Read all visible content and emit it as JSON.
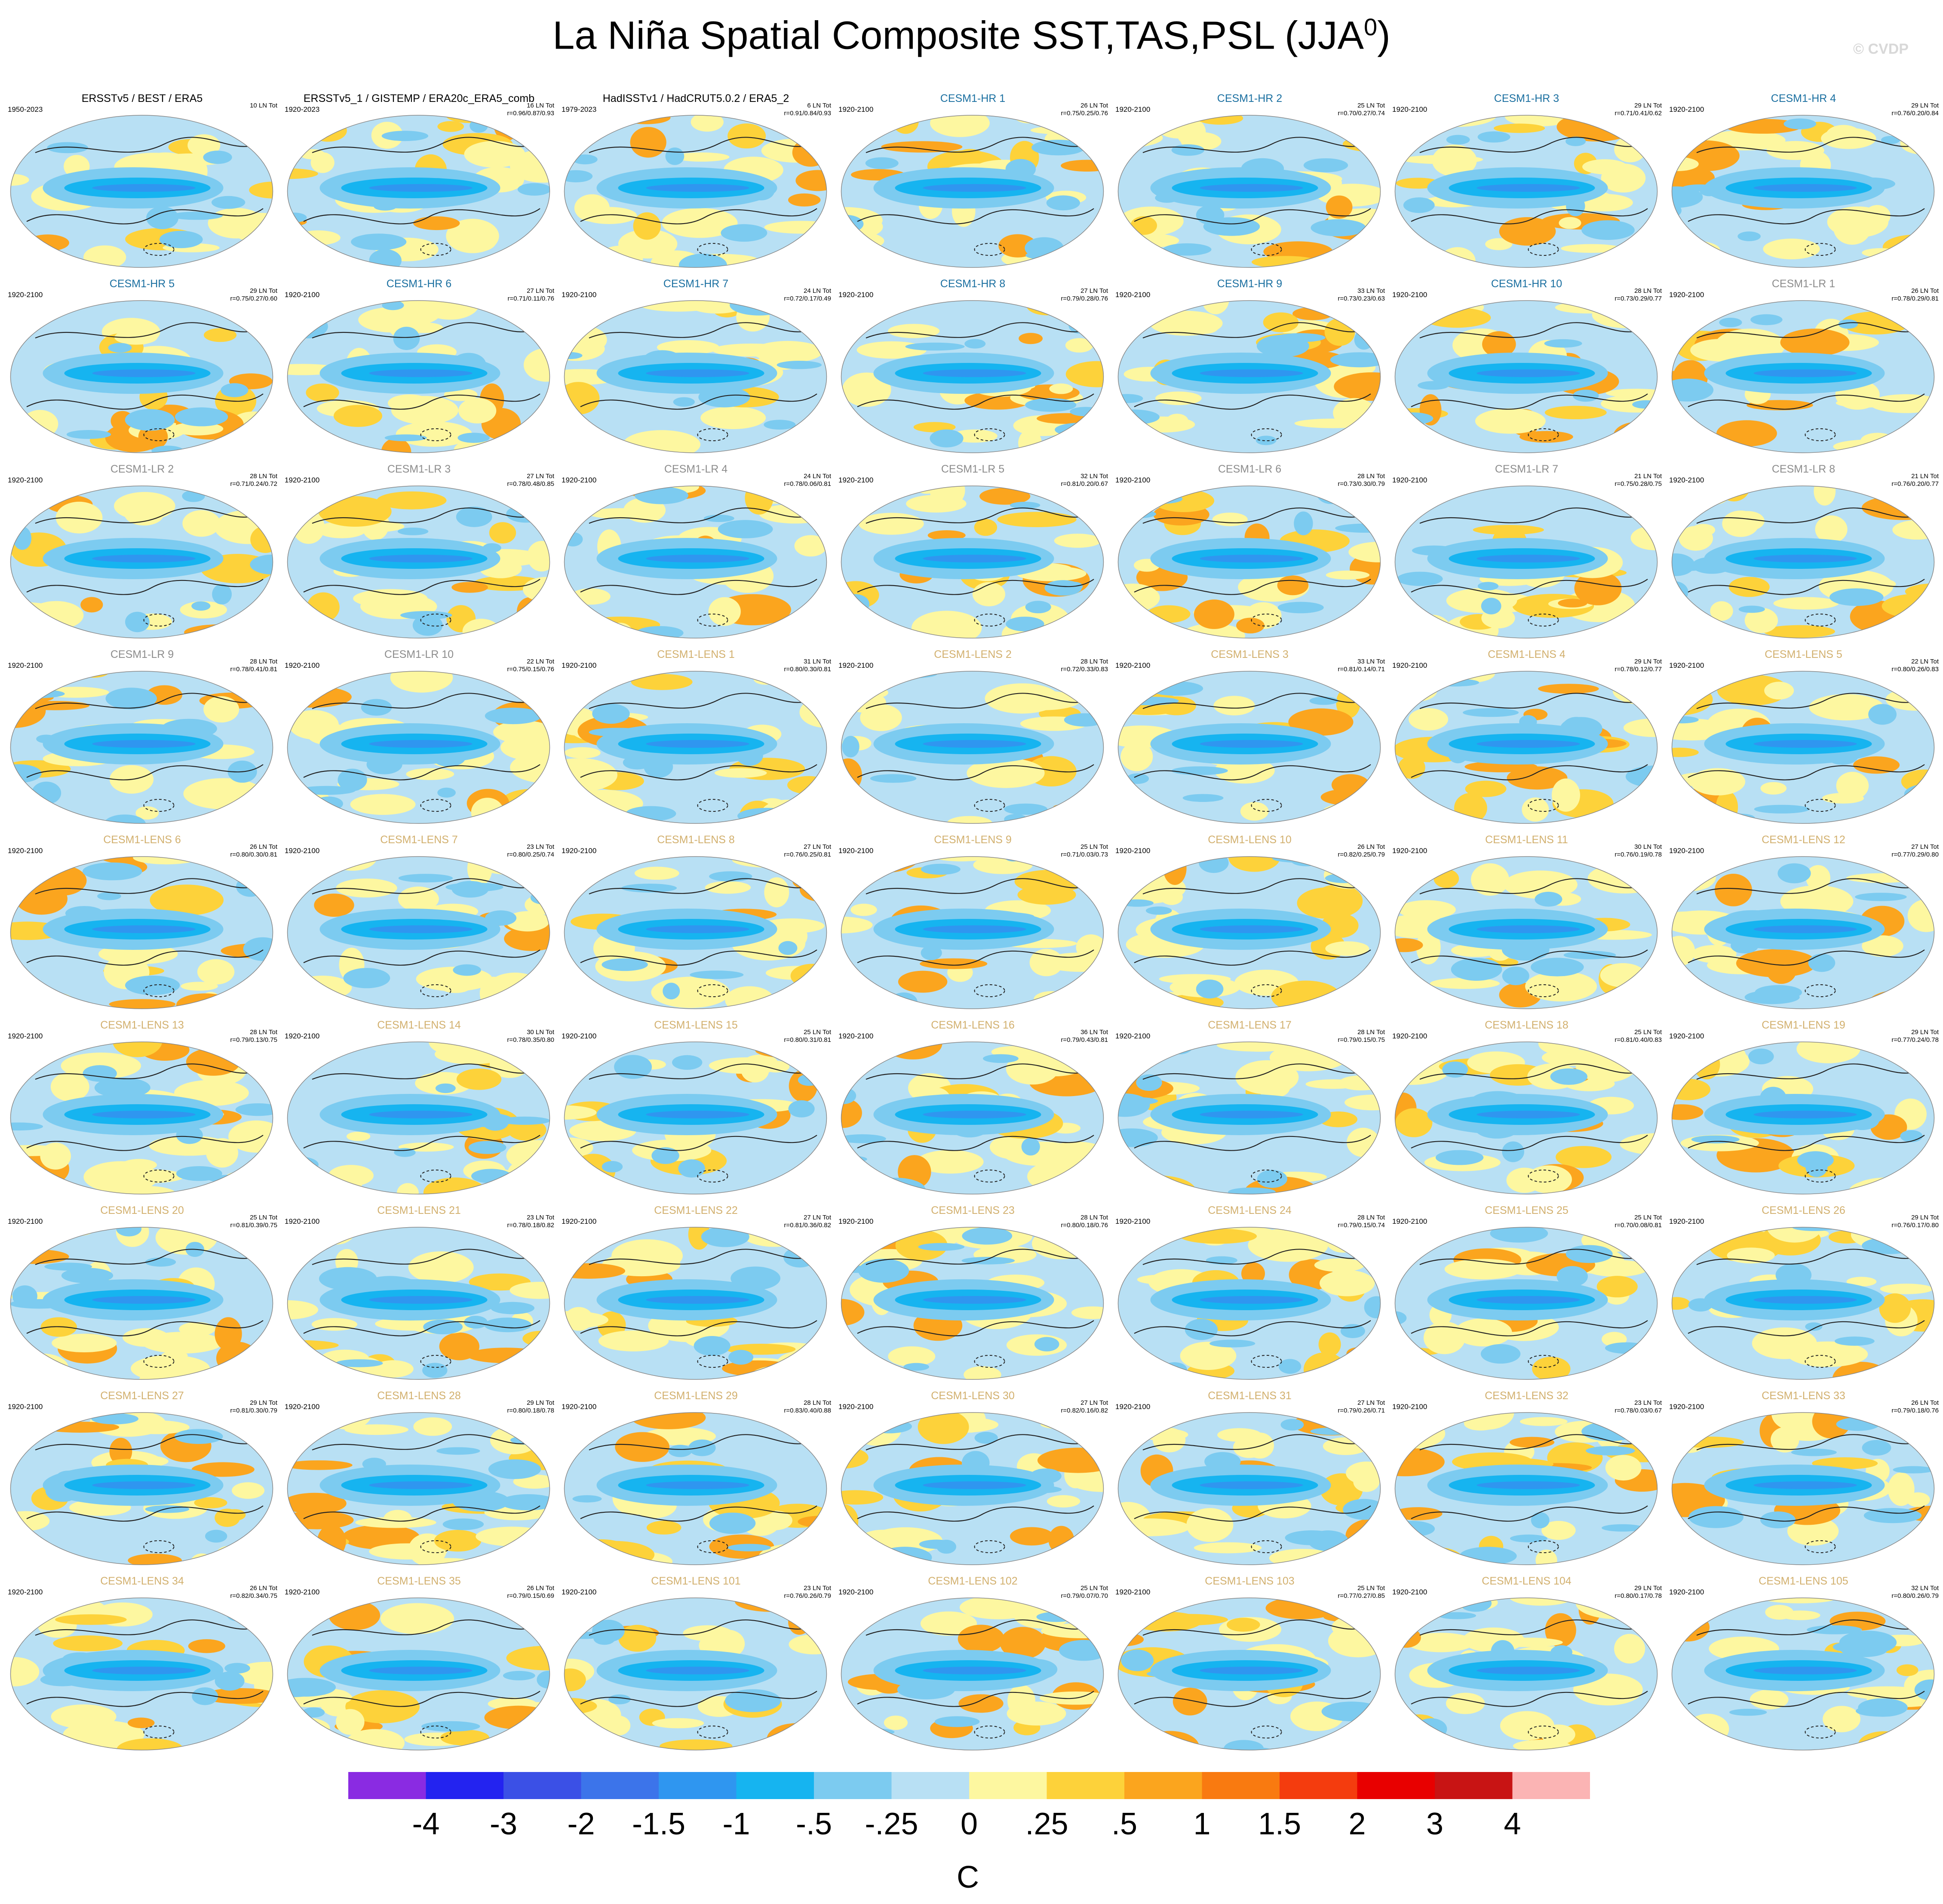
{
  "title": "La Niña Spatial Composite SST,TAS,PSL (JJA",
  "title_sup": "0",
  "title_close": ")",
  "watermark": "© CVDP",
  "colors": {
    "obs_title": "#000000",
    "hr_title": "#1a6fa0",
    "lr_title": "#8c8c8c",
    "lens_title": "#d2b06e"
  },
  "colorbar": {
    "colors": [
      "#8a2be2",
      "#2323f0",
      "#3b50e6",
      "#3c74ea",
      "#2f96f0",
      "#16b4f0",
      "#7ccbf0",
      "#b8e0f4",
      "#fdf7a0",
      "#fdd23a",
      "#fba51e",
      "#f97a10",
      "#f43c0e",
      "#e80000",
      "#c81414",
      "#fbb4b4"
    ],
    "labels": [
      "-4",
      "-3",
      "-2",
      "-1.5",
      "-1",
      "-.5",
      "-.25",
      "0",
      ".25",
      ".5",
      "1",
      "1.5",
      "2",
      "3",
      "4"
    ],
    "unit": "C"
  },
  "chart_data": {
    "type": "heatmap",
    "description_levels": [
      -4,
      -3,
      -2,
      -1.5,
      -1,
      -0.5,
      -0.25,
      0,
      0.25,
      0.5,
      1,
      1.5,
      2,
      3,
      4
    ],
    "panels": [
      {
        "name": "ERSSTv5 / BEST / ERA5",
        "group": "obs",
        "period": "1950-2023",
        "count": "10 LN Tot",
        "stats": ""
      },
      {
        "name": "ERSSTv5_1 / GISTEMP / ERA20c_ERA5_comb",
        "group": "obs",
        "period": "1920-2023",
        "count": "16 LN Tot",
        "stats": "r=0.96/0.87/0.93"
      },
      {
        "name": "HadISSTv1 / HadCRUT5.0.2 / ERA5_2",
        "group": "obs",
        "period": "1979-2023",
        "count": "6 LN Tot",
        "stats": "r=0.91/0.84/0.93"
      },
      {
        "name": "CESM1-HR 1",
        "group": "hr",
        "period": "1920-2100",
        "count": "26 LN Tot",
        "stats": "r=0.75/0.25/0.76"
      },
      {
        "name": "CESM1-HR 2",
        "group": "hr",
        "period": "1920-2100",
        "count": "25 LN Tot",
        "stats": "r=0.70/0.27/0.74"
      },
      {
        "name": "CESM1-HR 3",
        "group": "hr",
        "period": "1920-2100",
        "count": "29 LN Tot",
        "stats": "r=0.71/0.41/0.62"
      },
      {
        "name": "CESM1-HR 4",
        "group": "hr",
        "period": "1920-2100",
        "count": "29 LN Tot",
        "stats": "r=0.76/0.20/0.84"
      },
      {
        "name": "CESM1-HR 5",
        "group": "hr",
        "period": "1920-2100",
        "count": "29 LN Tot",
        "stats": "r=0.75/0.27/0.60"
      },
      {
        "name": "CESM1-HR 6",
        "group": "hr",
        "period": "1920-2100",
        "count": "27 LN Tot",
        "stats": "r=0.71/0.11/0.76"
      },
      {
        "name": "CESM1-HR 7",
        "group": "hr",
        "period": "1920-2100",
        "count": "24 LN Tot",
        "stats": "r=0.72/0.17/0.49"
      },
      {
        "name": "CESM1-HR 8",
        "group": "hr",
        "period": "1920-2100",
        "count": "27 LN Tot",
        "stats": "r=0.79/0.28/0.76"
      },
      {
        "name": "CESM1-HR 9",
        "group": "hr",
        "period": "1920-2100",
        "count": "33 LN Tot",
        "stats": "r=0.73/0.23/0.63"
      },
      {
        "name": "CESM1-HR 10",
        "group": "hr",
        "period": "1920-2100",
        "count": "28 LN Tot",
        "stats": "r=0.73/0.29/0.77"
      },
      {
        "name": "CESM1-LR 1",
        "group": "lr",
        "period": "1920-2100",
        "count": "26 LN Tot",
        "stats": "r=0.78/0.29/0.81"
      },
      {
        "name": "CESM1-LR 2",
        "group": "lr",
        "period": "1920-2100",
        "count": "28 LN Tot",
        "stats": "r=0.71/0.24/0.72"
      },
      {
        "name": "CESM1-LR 3",
        "group": "lr",
        "period": "1920-2100",
        "count": "27 LN Tot",
        "stats": "r=0.78/0.48/0.85"
      },
      {
        "name": "CESM1-LR 4",
        "group": "lr",
        "period": "1920-2100",
        "count": "24 LN Tot",
        "stats": "r=0.78/0.06/0.81"
      },
      {
        "name": "CESM1-LR 5",
        "group": "lr",
        "period": "1920-2100",
        "count": "32 LN Tot",
        "stats": "r=0.81/0.20/0.67"
      },
      {
        "name": "CESM1-LR 6",
        "group": "lr",
        "period": "1920-2100",
        "count": "28 LN Tot",
        "stats": "r=0.73/0.30/0.79"
      },
      {
        "name": "CESM1-LR 7",
        "group": "lr",
        "period": "1920-2100",
        "count": "21 LN Tot",
        "stats": "r=0.75/0.28/0.75"
      },
      {
        "name": "CESM1-LR 8",
        "group": "lr",
        "period": "1920-2100",
        "count": "21 LN Tot",
        "stats": "r=0.76/0.20/0.77"
      },
      {
        "name": "CESM1-LR 9",
        "group": "lr",
        "period": "1920-2100",
        "count": "28 LN Tot",
        "stats": "r=0.78/0.41/0.81"
      },
      {
        "name": "CESM1-LR 10",
        "group": "lr",
        "period": "1920-2100",
        "count": "22 LN Tot",
        "stats": "r=0.75/0.15/0.76"
      },
      {
        "name": "CESM1-LENS 1",
        "group": "lens",
        "period": "1920-2100",
        "count": "31 LN Tot",
        "stats": "r=0.80/0.30/0.81"
      },
      {
        "name": "CESM1-LENS 2",
        "group": "lens",
        "period": "1920-2100",
        "count": "28 LN Tot",
        "stats": "r=0.72/0.33/0.83"
      },
      {
        "name": "CESM1-LENS 3",
        "group": "lens",
        "period": "1920-2100",
        "count": "33 LN Tot",
        "stats": "r=0.81/0.14/0.71"
      },
      {
        "name": "CESM1-LENS 4",
        "group": "lens",
        "period": "1920-2100",
        "count": "29 LN Tot",
        "stats": "r=0.78/0.12/0.77"
      },
      {
        "name": "CESM1-LENS 5",
        "group": "lens",
        "period": "1920-2100",
        "count": "22 LN Tot",
        "stats": "r=0.80/0.26/0.83"
      },
      {
        "name": "CESM1-LENS 6",
        "group": "lens",
        "period": "1920-2100",
        "count": "26 LN Tot",
        "stats": "r=0.80/0.30/0.81"
      },
      {
        "name": "CESM1-LENS 7",
        "group": "lens",
        "period": "1920-2100",
        "count": "23 LN Tot",
        "stats": "r=0.80/0.25/0.74"
      },
      {
        "name": "CESM1-LENS 8",
        "group": "lens",
        "period": "1920-2100",
        "count": "27 LN Tot",
        "stats": "r=0.76/0.25/0.81"
      },
      {
        "name": "CESM1-LENS 9",
        "group": "lens",
        "period": "1920-2100",
        "count": "25 LN Tot",
        "stats": "r=0.71/0.03/0.73"
      },
      {
        "name": "CESM1-LENS 10",
        "group": "lens",
        "period": "1920-2100",
        "count": "26 LN Tot",
        "stats": "r=0.82/0.25/0.79"
      },
      {
        "name": "CESM1-LENS 11",
        "group": "lens",
        "period": "1920-2100",
        "count": "30 LN Tot",
        "stats": "r=0.76/0.19/0.78"
      },
      {
        "name": "CESM1-LENS 12",
        "group": "lens",
        "period": "1920-2100",
        "count": "27 LN Tot",
        "stats": "r=0.77/0.29/0.80"
      },
      {
        "name": "CESM1-LENS 13",
        "group": "lens",
        "period": "1920-2100",
        "count": "28 LN Tot",
        "stats": "r=0.79/0.13/0.75"
      },
      {
        "name": "CESM1-LENS 14",
        "group": "lens",
        "period": "1920-2100",
        "count": "30 LN Tot",
        "stats": "r=0.78/0.35/0.80"
      },
      {
        "name": "CESM1-LENS 15",
        "group": "lens",
        "period": "1920-2100",
        "count": "25 LN Tot",
        "stats": "r=0.80/0.31/0.81"
      },
      {
        "name": "CESM1-LENS 16",
        "group": "lens",
        "period": "1920-2100",
        "count": "36 LN Tot",
        "stats": "r=0.79/0.43/0.81"
      },
      {
        "name": "CESM1-LENS 17",
        "group": "lens",
        "period": "1920-2100",
        "count": "28 LN Tot",
        "stats": "r=0.79/0.15/0.75"
      },
      {
        "name": "CESM1-LENS 18",
        "group": "lens",
        "period": "1920-2100",
        "count": "25 LN Tot",
        "stats": "r=0.81/0.40/0.83"
      },
      {
        "name": "CESM1-LENS 19",
        "group": "lens",
        "period": "1920-2100",
        "count": "29 LN Tot",
        "stats": "r=0.77/0.24/0.78"
      },
      {
        "name": "CESM1-LENS 20",
        "group": "lens",
        "period": "1920-2100",
        "count": "25 LN Tot",
        "stats": "r=0.81/0.39/0.75"
      },
      {
        "name": "CESM1-LENS 21",
        "group": "lens",
        "period": "1920-2100",
        "count": "23 LN Tot",
        "stats": "r=0.78/0.18/0.82"
      },
      {
        "name": "CESM1-LENS 22",
        "group": "lens",
        "period": "1920-2100",
        "count": "27 LN Tot",
        "stats": "r=0.81/0.36/0.82"
      },
      {
        "name": "CESM1-LENS 23",
        "group": "lens",
        "period": "1920-2100",
        "count": "28 LN Tot",
        "stats": "r=0.80/0.18/0.76"
      },
      {
        "name": "CESM1-LENS 24",
        "group": "lens",
        "period": "1920-2100",
        "count": "28 LN Tot",
        "stats": "r=0.79/0.15/0.74"
      },
      {
        "name": "CESM1-LENS 25",
        "group": "lens",
        "period": "1920-2100",
        "count": "25 LN Tot",
        "stats": "r=0.70/0.08/0.81"
      },
      {
        "name": "CESM1-LENS 26",
        "group": "lens",
        "period": "1920-2100",
        "count": "29 LN Tot",
        "stats": "r=0.76/0.17/0.80"
      },
      {
        "name": "CESM1-LENS 27",
        "group": "lens",
        "period": "1920-2100",
        "count": "29 LN Tot",
        "stats": "r=0.81/0.30/0.79"
      },
      {
        "name": "CESM1-LENS 28",
        "group": "lens",
        "period": "1920-2100",
        "count": "29 LN Tot",
        "stats": "r=0.80/0.18/0.78"
      },
      {
        "name": "CESM1-LENS 29",
        "group": "lens",
        "period": "1920-2100",
        "count": "28 LN Tot",
        "stats": "r=0.83/0.40/0.88"
      },
      {
        "name": "CESM1-LENS 30",
        "group": "lens",
        "period": "1920-2100",
        "count": "27 LN Tot",
        "stats": "r=0.82/0.16/0.82"
      },
      {
        "name": "CESM1-LENS 31",
        "group": "lens",
        "period": "1920-2100",
        "count": "27 LN Tot",
        "stats": "r=0.79/0.26/0.71"
      },
      {
        "name": "CESM1-LENS 32",
        "group": "lens",
        "period": "1920-2100",
        "count": "23 LN Tot",
        "stats": "r=0.78/0.03/0.67"
      },
      {
        "name": "CESM1-LENS 33",
        "group": "lens",
        "period": "1920-2100",
        "count": "26 LN Tot",
        "stats": "r=0.79/0.18/0.76"
      },
      {
        "name": "CESM1-LENS 34",
        "group": "lens",
        "period": "1920-2100",
        "count": "26 LN Tot",
        "stats": "r=0.82/0.34/0.75"
      },
      {
        "name": "CESM1-LENS 35",
        "group": "lens",
        "period": "1920-2100",
        "count": "26 LN Tot",
        "stats": "r=0.79/0.15/0.69"
      },
      {
        "name": "CESM1-LENS 101",
        "group": "lens",
        "period": "1920-2100",
        "count": "23 LN Tot",
        "stats": "r=0.76/0.26/0.79"
      },
      {
        "name": "CESM1-LENS 102",
        "group": "lens",
        "period": "1920-2100",
        "count": "25 LN Tot",
        "stats": "r=0.79/0.07/0.70"
      },
      {
        "name": "CESM1-LENS 103",
        "group": "lens",
        "period": "1920-2100",
        "count": "25 LN Tot",
        "stats": "r=0.77/0.27/0.85"
      },
      {
        "name": "CESM1-LENS 104",
        "group": "lens",
        "period": "1920-2100",
        "count": "29 LN Tot",
        "stats": "r=0.80/0.17/0.78"
      },
      {
        "name": "CESM1-LENS 105",
        "group": "lens",
        "period": "1920-2100",
        "count": "32 LN Tot",
        "stats": "r=0.80/0.26/0.79"
      }
    ]
  }
}
